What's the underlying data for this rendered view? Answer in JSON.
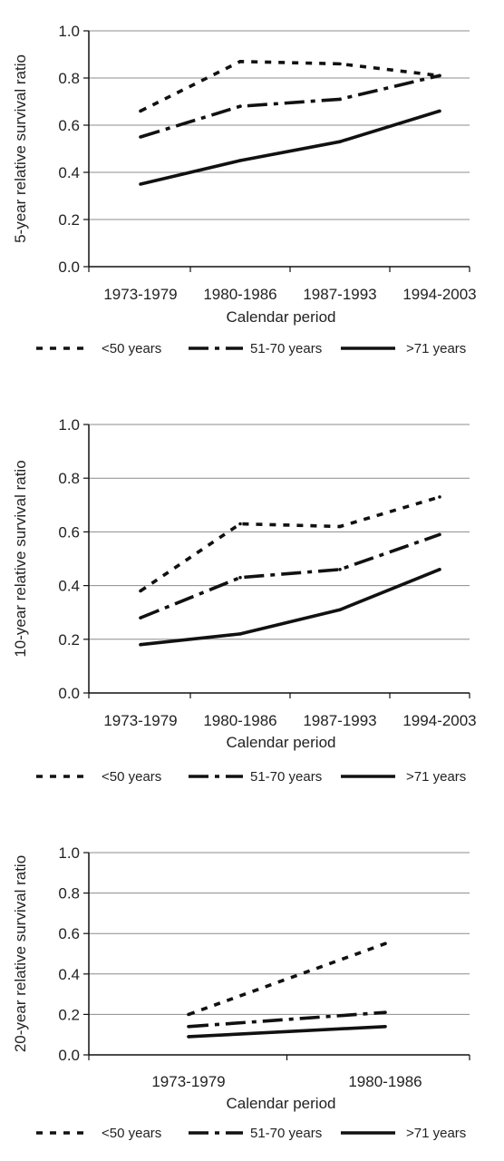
{
  "chart_data": [
    {
      "type": "line",
      "categories": [
        "1973-1979",
        "1980-1986",
        "1987-1993",
        "1994-2003"
      ],
      "xlabel": "Calendar period",
      "ylabel": "5-year relative survival ratio",
      "ylim": [
        0,
        1
      ],
      "yticks": [
        "0.0",
        "0.2",
        "0.4",
        "0.6",
        "0.8",
        "1.0"
      ],
      "grid": true,
      "legend_position": "bottom",
      "series": [
        {
          "name": "<50 years",
          "values": [
            0.66,
            0.87,
            0.86,
            0.81
          ]
        },
        {
          "name": "51-70 years",
          "values": [
            0.55,
            0.68,
            0.71,
            0.81
          ]
        },
        {
          "name": ">71 years",
          "values": [
            0.35,
            0.45,
            0.53,
            0.66
          ]
        }
      ]
    },
    {
      "type": "line",
      "categories": [
        "1973-1979",
        "1980-1986",
        "1987-1993",
        "1994-2003"
      ],
      "xlabel": "Calendar period",
      "ylabel": "10-year relative survival ratio",
      "ylim": [
        0,
        1
      ],
      "yticks": [
        "0.0",
        "0.2",
        "0.4",
        "0.6",
        "0.8",
        "1.0"
      ],
      "grid": true,
      "legend_position": "bottom",
      "series": [
        {
          "name": "<50 years",
          "values": [
            0.38,
            0.63,
            0.62,
            0.73
          ]
        },
        {
          "name": "51-70 years",
          "values": [
            0.28,
            0.43,
            0.46,
            0.59
          ]
        },
        {
          "name": ">71 years",
          "values": [
            0.18,
            0.22,
            0.31,
            0.46
          ]
        }
      ]
    },
    {
      "type": "line",
      "categories": [
        "1973-1979",
        "1980-1986"
      ],
      "xlabel": "Calendar period",
      "ylabel": "20-year relative survival ratio",
      "ylim": [
        0,
        1
      ],
      "yticks": [
        "0.0",
        "0.2",
        "0.4",
        "0.6",
        "0.8",
        "1.0"
      ],
      "grid": true,
      "legend_position": "bottom",
      "series": [
        {
          "name": "<50 years",
          "values": [
            0.2,
            0.55
          ]
        },
        {
          "name": "51-70 years",
          "values": [
            0.14,
            0.21
          ]
        },
        {
          "name": ">71 years",
          "values": [
            0.09,
            0.14
          ]
        }
      ]
    }
  ],
  "line_color": "#111111",
  "grid_color": "#8c8c8c"
}
